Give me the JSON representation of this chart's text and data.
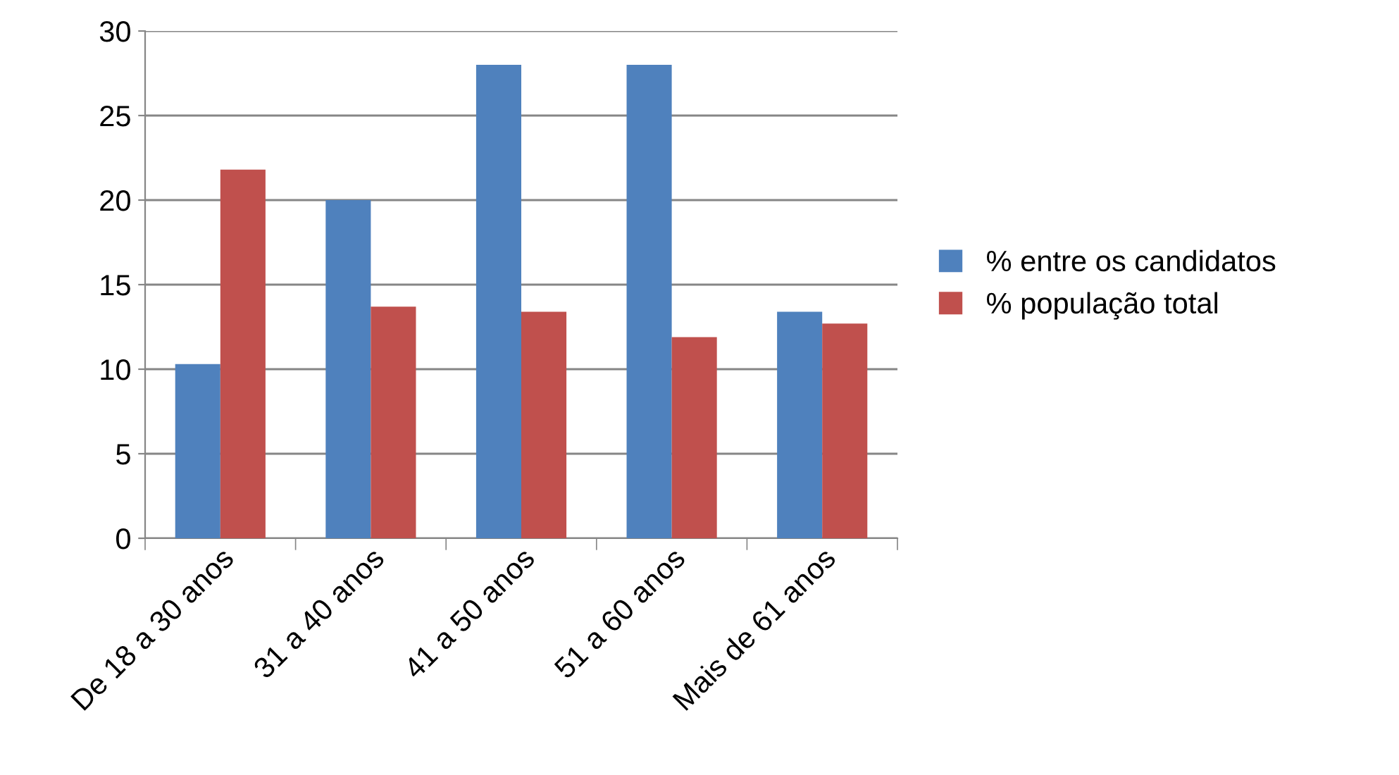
{
  "chart_data": {
    "type": "bar",
    "categories": [
      "De 18 a 30 anos",
      "31 a 40 anos",
      "41 a 50 anos",
      "51 a 60 anos",
      "Mais de 61 anos"
    ],
    "series": [
      {
        "name": "% entre os candidatos",
        "color": "#4f81bd",
        "values": [
          10.3,
          20,
          28,
          28,
          13.4
        ]
      },
      {
        "name": "% população total",
        "color": "#c0504d",
        "values": [
          21.8,
          13.7,
          13.4,
          11.9,
          12.7
        ]
      }
    ],
    "ylim": [
      0,
      30
    ],
    "yticks": [
      0,
      5,
      10,
      15,
      20,
      25,
      30
    ],
    "grid": "y",
    "legend": "right"
  }
}
